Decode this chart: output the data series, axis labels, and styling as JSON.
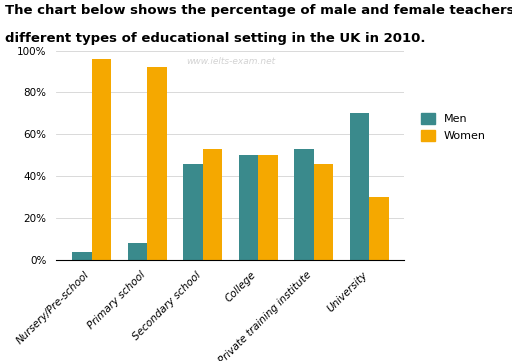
{
  "categories": [
    "Nursery/Pre-school",
    "Primary school",
    "Secondary school",
    "College",
    "Private training institute",
    "University"
  ],
  "men_values": [
    4,
    8,
    46,
    50,
    53,
    70
  ],
  "women_values": [
    96,
    92,
    53,
    50,
    46,
    30
  ],
  "men_color": "#3a8a8c",
  "women_color": "#f5a800",
  "ylim": [
    0,
    100
  ],
  "yticks": [
    0,
    20,
    40,
    60,
    80,
    100
  ],
  "ytick_labels": [
    "0%",
    "20%",
    "40%",
    "60%",
    "80%",
    "100%"
  ],
  "legend_men": "Men",
  "legend_women": "Women",
  "watermark": "www.ielts-exam.net",
  "title_line1": "The chart below shows the percentage of male and female teachers in six",
  "title_line2": "different types of educational setting in the UK in 2010.",
  "title_fontsize": 9.5,
  "bar_width": 0.35,
  "legend_fontsize": 8,
  "tick_fontsize": 7.5
}
